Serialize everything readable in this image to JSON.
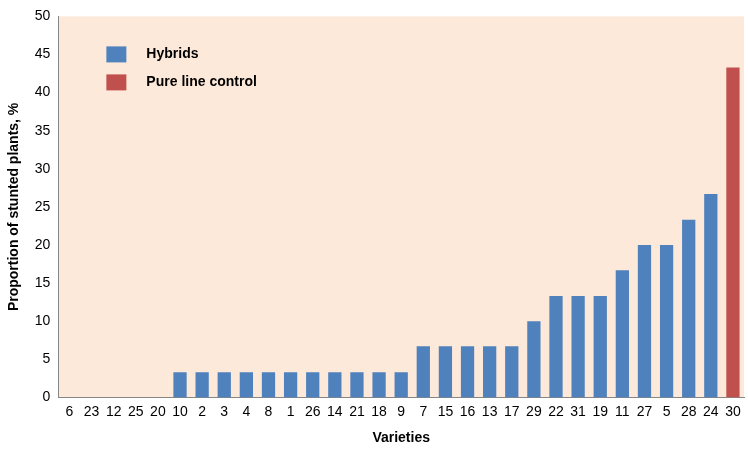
{
  "chart_data": {
    "type": "bar",
    "x_label": "Varieties",
    "y_label": "Proportion of stunted plants, %",
    "categories": [
      "6",
      "23",
      "12",
      "25",
      "20",
      "10",
      "2",
      "3",
      "4",
      "8",
      "1",
      "26",
      "14",
      "21",
      "18",
      "9",
      "7",
      "15",
      "16",
      "13",
      "17",
      "29",
      "22",
      "31",
      "19",
      "11",
      "27",
      "5",
      "28",
      "24",
      "30"
    ],
    "series": [
      {
        "name": "Hybrids",
        "color": "#4f81bd",
        "values": [
          0,
          0,
          0,
          0,
          0,
          3.3,
          3.3,
          3.3,
          3.3,
          3.3,
          3.3,
          3.3,
          3.3,
          3.3,
          3.3,
          3.3,
          6.7,
          6.7,
          6.7,
          6.7,
          6.7,
          10,
          13.3,
          13.3,
          13.3,
          16.7,
          20,
          20,
          23.3,
          26.7,
          null
        ]
      },
      {
        "name": "Pure line control",
        "color": "#c0504d",
        "values": [
          null,
          null,
          null,
          null,
          null,
          null,
          null,
          null,
          null,
          null,
          null,
          null,
          null,
          null,
          null,
          null,
          null,
          null,
          null,
          null,
          null,
          null,
          null,
          null,
          null,
          null,
          null,
          null,
          null,
          null,
          43.3
        ]
      }
    ],
    "stacked": true,
    "ylim": [
      0,
      50
    ],
    "yticks": [
      0,
      5,
      10,
      15,
      20,
      25,
      30,
      35,
      40,
      45,
      50
    ],
    "grid": false,
    "legend": "upper left"
  }
}
